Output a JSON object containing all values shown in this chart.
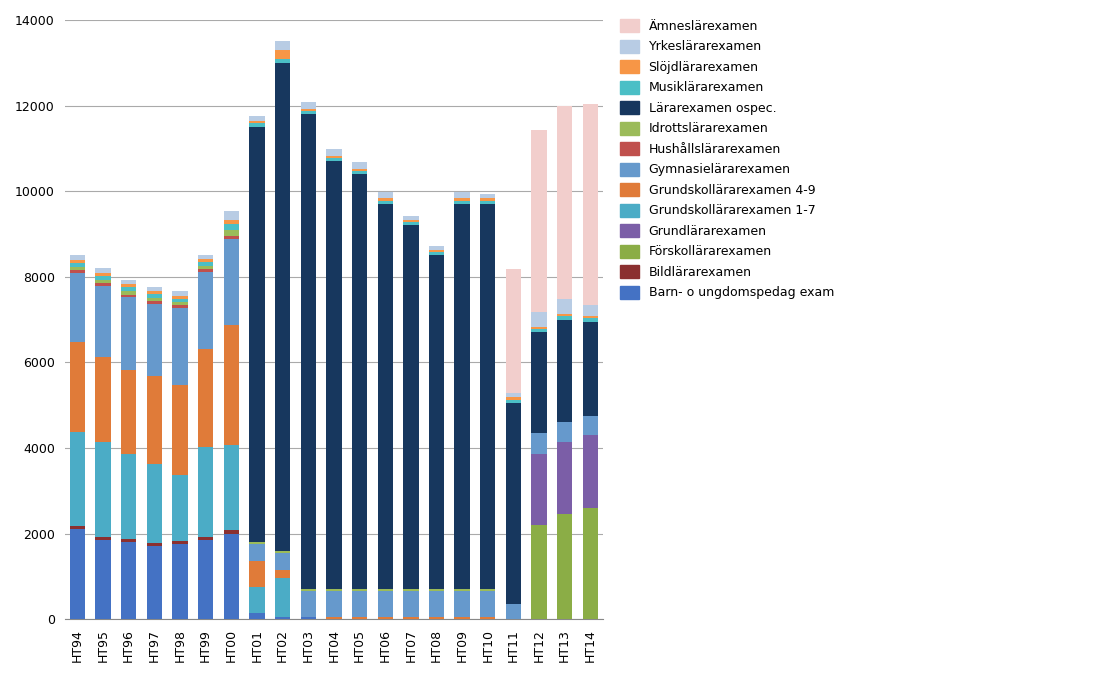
{
  "years": [
    "HT94",
    "HT95",
    "HT96",
    "HT97",
    "HT98",
    "HT99",
    "HT00",
    "HT01",
    "HT02",
    "HT03",
    "HT04",
    "HT05",
    "HT06",
    "HT07",
    "HT08",
    "HT09",
    "HT10",
    "HT11",
    "HT12",
    "HT13",
    "HT14"
  ],
  "series": {
    "Barn- o ungdomspedag exam": [
      2100,
      1850,
      1800,
      1700,
      1750,
      1850,
      2000,
      150,
      50,
      50,
      0,
      0,
      0,
      0,
      0,
      0,
      0,
      0,
      0,
      0,
      0
    ],
    "Bildlärarexamen": [
      80,
      80,
      70,
      70,
      70,
      70,
      80,
      0,
      0,
      0,
      0,
      0,
      0,
      0,
      0,
      0,
      0,
      0,
      0,
      0,
      0
    ],
    "Förskollärarexamen": [
      0,
      0,
      0,
      0,
      0,
      0,
      0,
      0,
      0,
      0,
      0,
      0,
      0,
      0,
      0,
      0,
      0,
      0,
      2200,
      2450,
      2600
    ],
    "Grundlärarexamen": [
      0,
      0,
      0,
      0,
      0,
      0,
      0,
      0,
      0,
      0,
      0,
      0,
      0,
      0,
      0,
      0,
      0,
      0,
      1650,
      1700,
      1700
    ],
    "Grundskollärarexamen 1-7": [
      2200,
      2200,
      2000,
      1850,
      1550,
      2100,
      2000,
      600,
      900,
      0,
      0,
      0,
      0,
      0,
      0,
      0,
      0,
      0,
      0,
      0,
      0
    ],
    "Grundskollärarexamen 4-9": [
      2100,
      2000,
      1950,
      2050,
      2100,
      2300,
      2800,
      600,
      200,
      0,
      50,
      50,
      50,
      50,
      50,
      50,
      50,
      0,
      0,
      0,
      0
    ],
    "Gymnasielärarexamen": [
      1600,
      1650,
      1700,
      1700,
      1800,
      1800,
      2000,
      400,
      400,
      600,
      600,
      600,
      600,
      600,
      600,
      600,
      600,
      350,
      500,
      450,
      450
    ],
    "Hushållslärarexamen": [
      70,
      70,
      60,
      60,
      60,
      60,
      70,
      0,
      0,
      0,
      0,
      0,
      0,
      0,
      0,
      0,
      0,
      0,
      0,
      0,
      0
    ],
    "Idrottslärarexamen": [
      80,
      80,
      80,
      80,
      80,
      80,
      150,
      50,
      50,
      50,
      50,
      50,
      50,
      50,
      50,
      50,
      50,
      0,
      0,
      0,
      0
    ],
    "Lärarexamen ospec.": [
      0,
      0,
      0,
      0,
      0,
      0,
      0,
      9700,
      11400,
      11100,
      10000,
      9700,
      9000,
      8500,
      7800,
      9000,
      9000,
      4700,
      2350,
      2400,
      2200
    ],
    "Musiklärarexamen": [
      90,
      90,
      90,
      80,
      80,
      90,
      130,
      100,
      100,
      80,
      80,
      80,
      80,
      80,
      80,
      80,
      80,
      80,
      80,
      80,
      80
    ],
    "Slöjdlärarexamen": [
      80,
      80,
      70,
      70,
      70,
      70,
      100,
      50,
      200,
      50,
      50,
      50,
      50,
      50,
      50,
      50,
      50,
      50,
      50,
      50,
      50
    ],
    "Yrkeslärarexamen": [
      100,
      100,
      100,
      100,
      100,
      100,
      200,
      100,
      200,
      150,
      150,
      150,
      150,
      100,
      100,
      150,
      100,
      100,
      350,
      350,
      250
    ],
    "Ämneslärexamen": [
      0,
      0,
      0,
      0,
      0,
      0,
      0,
      0,
      0,
      0,
      0,
      0,
      0,
      0,
      0,
      0,
      0,
      2900,
      4250,
      4500,
      4700
    ]
  },
  "colors": {
    "Barn- o ungdomspedag exam": "#4472C4",
    "Bildlärarexamen": "#8B3030",
    "Förskollärarexamen": "#8BAD46",
    "Grundlärarexamen": "#7B5EA7",
    "Grundskollärarexamen 1-7": "#4BACC6",
    "Grundskollärarexamen 4-9": "#E07B39",
    "Gymnasielärarexamen": "#6699CC",
    "Hushållslärarexamen": "#C0504D",
    "Idrottslärarexamen": "#9BBB59",
    "Lärarexamen ospec.": "#17375E",
    "Musiklärarexamen": "#4BBFC6",
    "Slöjdlärarexamen": "#F79646",
    "Yrkeslärarexamen": "#B8CCE4",
    "Ämneslärexamen": "#F2CECC"
  },
  "draw_order": [
    "Barn- o ungdomspedag exam",
    "Bildlärarexamen",
    "Förskollärarexamen",
    "Grundlärarexamen",
    "Grundskollärarexamen 1-7",
    "Grundskollärarexamen 4-9",
    "Gymnasielärarexamen",
    "Hushållslärarexamen",
    "Idrottslärarexamen",
    "Lärarexamen ospec.",
    "Musiklärarexamen",
    "Slöjdlärarexamen",
    "Yrkeslärarexamen",
    "Ämneslärexamen"
  ],
  "legend_order": [
    "Ämneslärexamen",
    "Yrkeslärarexamen",
    "Slöjdlärarexamen",
    "Musiklärarexamen",
    "Lärarexamen ospec.",
    "Idrottslärarexamen",
    "Hushållslärarexamen",
    "Gymnasielärarexamen",
    "Grundskollärarexamen 4-9",
    "Grundskollärarexamen 1-7",
    "Grundlärarexamen",
    "Förskollärarexamen",
    "Bildlärarexamen",
    "Barn- o ungdomspedag exam"
  ],
  "legend_display": {
    "Ämneslärexamen": "Ämneslärexamen",
    "Yrkeslärarexamen": "Yrkeslärarexamen",
    "Slöjdlärarexamen": "Slöjdlärarexamen",
    "Musiklärarexamen": "Musiklärarexamen",
    "Lärarexamen ospec.": "Lärarexamen ospec.",
    "Idrottslärarexamen": "Idrottslärarexamen",
    "Hushållslärarexamen": "Hushållslärarexamen",
    "Gymnasielärarexamen": "Gymnasielärarexamen",
    "Grundskollärarexamen 4-9": "Grundskollärarexamen 4-9",
    "Grundskollärarexamen 1-7": "Grundskollärarexamen 1-7",
    "Grundlärarexamen": "Grundlärarexamen",
    "Förskollärarexamen": "Förskollärarexamen",
    "Bildlärarexamen": "Bildlärarexamen",
    "Barn- o ungdomspedag exam": "Barn- o ungdomspedag exam"
  },
  "ylim": [
    0,
    14000
  ],
  "yticks": [
    0,
    2000,
    4000,
    6000,
    8000,
    10000,
    12000,
    14000
  ],
  "background_color": "#FFFFFF"
}
